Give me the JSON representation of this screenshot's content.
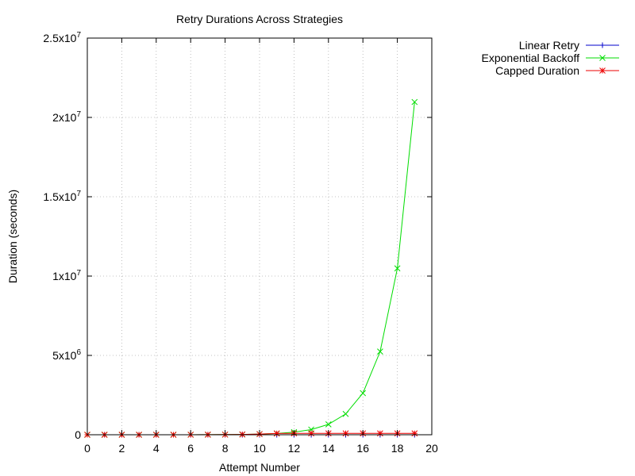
{
  "chart_data": {
    "type": "line",
    "title": "Retry Durations Across Strategies",
    "xlabel": "Attempt Number",
    "ylabel": "Duration (seconds)",
    "xlim": [
      0,
      20
    ],
    "ylim": [
      0,
      25000000
    ],
    "grid": true,
    "legend_position": "outside-top-right",
    "x_ticks": [
      {
        "value": 0,
        "label": "0"
      },
      {
        "value": 2,
        "label": "2"
      },
      {
        "value": 4,
        "label": "4"
      },
      {
        "value": 6,
        "label": "6"
      },
      {
        "value": 8,
        "label": "8"
      },
      {
        "value": 10,
        "label": "10"
      },
      {
        "value": 12,
        "label": "12"
      },
      {
        "value": 14,
        "label": "14"
      },
      {
        "value": 16,
        "label": "16"
      },
      {
        "value": 18,
        "label": "18"
      },
      {
        "value": 20,
        "label": "20"
      }
    ],
    "y_ticks": [
      {
        "value": 0,
        "base": "0",
        "exp": ""
      },
      {
        "value": 5000000,
        "base": "5x10",
        "exp": "6"
      },
      {
        "value": 10000000,
        "base": "1x10",
        "exp": "7"
      },
      {
        "value": 15000000,
        "base": "1.5x10",
        "exp": "7"
      },
      {
        "value": 20000000,
        "base": "2x10",
        "exp": "7"
      },
      {
        "value": 25000000,
        "base": "2.5x10",
        "exp": "7"
      }
    ],
    "x": [
      0,
      1,
      2,
      3,
      4,
      5,
      6,
      7,
      8,
      9,
      10,
      11,
      12,
      13,
      14,
      15,
      16,
      17,
      18,
      19
    ],
    "series": [
      {
        "name": "Linear Retry",
        "color": "#0000cc",
        "marker": "plus",
        "values": [
          40,
          80,
          120,
          160,
          200,
          240,
          280,
          320,
          360,
          400,
          440,
          480,
          520,
          560,
          600,
          640,
          680,
          720,
          760,
          800
        ]
      },
      {
        "name": "Exponential Backoff",
        "color": "#00dd00",
        "marker": "cross",
        "values": [
          40,
          80,
          160,
          320,
          640,
          1280,
          2560,
          5120,
          10240,
          20480,
          40960,
          81920,
          163840,
          327680,
          655360,
          1310720,
          2621440,
          5242880,
          10485760,
          20971520
        ]
      },
      {
        "name": "Capped Duration",
        "color": "#ee0000",
        "marker": "star",
        "values": [
          40,
          80,
          160,
          320,
          640,
          1280,
          2560,
          5120,
          10240,
          20480,
          40960,
          81920,
          86400,
          86400,
          86400,
          86400,
          86400,
          86400,
          86400,
          86400
        ]
      }
    ]
  }
}
